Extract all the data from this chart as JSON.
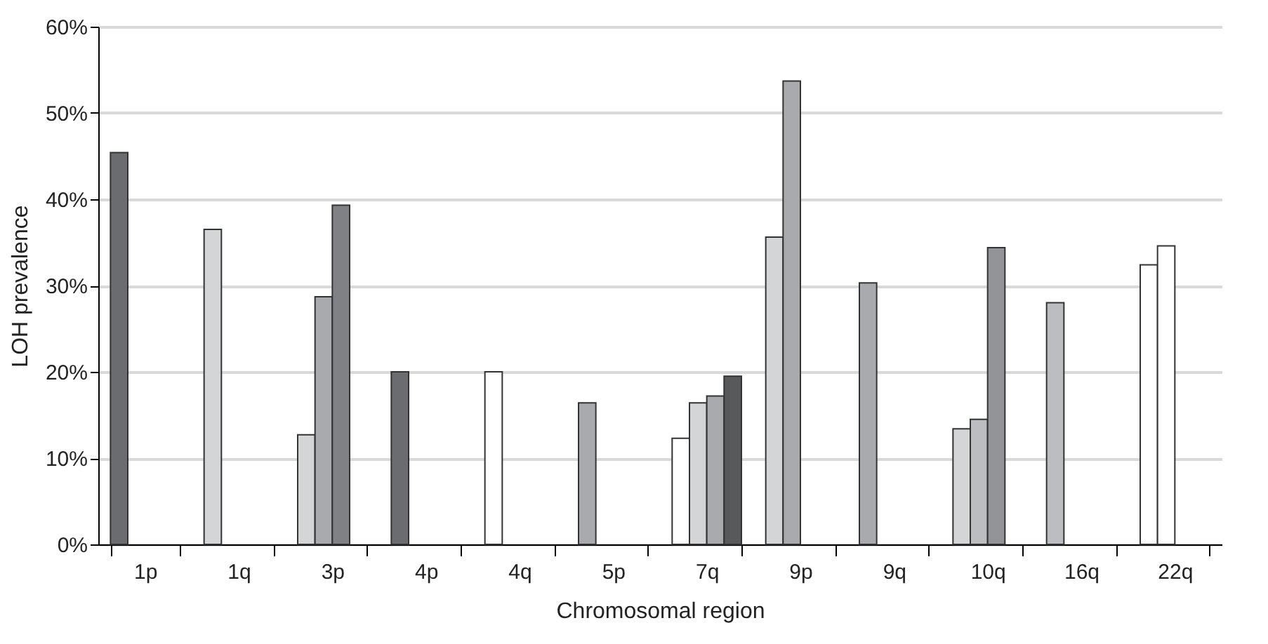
{
  "chart_data": {
    "type": "bar",
    "xlabel": "Chromosomal region",
    "ylabel": "LOH prevalence",
    "categories": [
      "1p",
      "1q",
      "3p",
      "4p",
      "4q",
      "5p",
      "7q",
      "9p",
      "9q",
      "10q",
      "16q",
      "22q"
    ],
    "ylim": [
      0,
      60
    ],
    "yticks": [
      {
        "value": 0,
        "label": "0%"
      },
      {
        "value": 10,
        "label": "10%"
      },
      {
        "value": 20,
        "label": "20%"
      },
      {
        "value": 30,
        "label": "30%"
      },
      {
        "value": 40,
        "label": "40%"
      },
      {
        "value": 50,
        "label": "50%"
      },
      {
        "value": 60,
        "label": "60%"
      }
    ],
    "grid": "y",
    "series": [
      {
        "values": [
          45.4,
          36.5,
          12.7,
          20.0,
          20.0,
          16.4,
          12.3,
          35.6,
          30.3,
          13.4,
          28.0,
          32.4
        ],
        "colors": [
          "#6b6c70",
          "#d4d5d7",
          "#d4d5d7",
          "#6b6c70",
          "#ffffff",
          "#a9aaad",
          "#ffffff",
          "#d4d5d7",
          "#a9aaad",
          "#d4d5d7",
          "#bcbdc0",
          "#ffffff"
        ]
      },
      {
        "values": [
          null,
          null,
          28.7,
          null,
          null,
          null,
          16.4,
          53.7,
          null,
          14.5,
          null,
          34.6
        ],
        "colors": [
          null,
          null,
          "#a9aaad",
          null,
          null,
          null,
          "#d4d5d7",
          "#a9aaad",
          null,
          "#bcbdc0",
          null,
          "#ffffff"
        ]
      },
      {
        "values": [
          null,
          null,
          39.3,
          null,
          null,
          null,
          17.2,
          null,
          null,
          34.4,
          null,
          null
        ],
        "colors": [
          null,
          null,
          "#808185",
          null,
          null,
          null,
          "#a9aaad",
          null,
          null,
          "#939497",
          null,
          null
        ]
      },
      {
        "values": [
          null,
          null,
          null,
          null,
          null,
          null,
          19.5,
          null,
          null,
          null,
          null,
          null
        ],
        "colors": [
          null,
          null,
          null,
          null,
          null,
          null,
          "#58595b",
          null,
          null,
          null,
          null,
          null
        ]
      }
    ]
  }
}
